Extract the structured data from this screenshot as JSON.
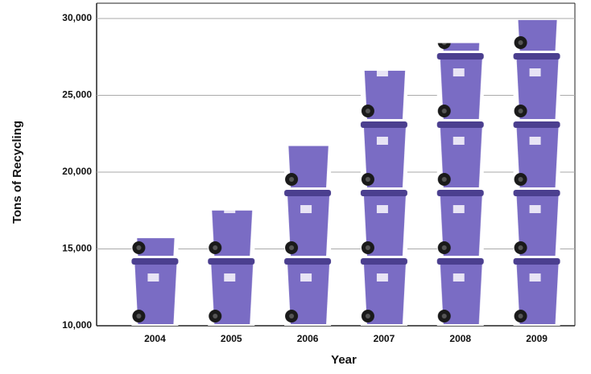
{
  "chart_data": {
    "type": "bar",
    "categories": [
      "2004",
      "2005",
      "2006",
      "2007",
      "2008",
      "2009"
    ],
    "values": [
      15700,
      17500,
      21700,
      26600,
      28400,
      29900
    ],
    "color": "#7a6cc4",
    "x_label": "Year",
    "y_label": "Tons of Recycling",
    "ylim": [
      10000,
      30000
    ],
    "yticks": [
      {
        "value": 10000,
        "label": "10,000"
      },
      {
        "value": 15000,
        "label": "15,000"
      },
      {
        "value": 20000,
        "label": "20,000"
      },
      {
        "value": 25000,
        "label": "25,000"
      },
      {
        "value": 30000,
        "label": "30,000"
      }
    ],
    "grid": true
  }
}
